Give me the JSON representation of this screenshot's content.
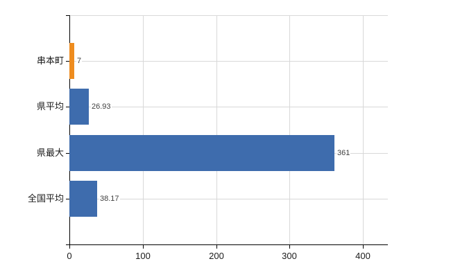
{
  "chart_data": {
    "type": "bar",
    "orientation": "horizontal",
    "title": "",
    "xlabel": "",
    "ylabel": "",
    "categories": [
      "串本町",
      "県平均",
      "県最大",
      "全国平均"
    ],
    "values": [
      7,
      26.93,
      361,
      38.17
    ],
    "value_labels": [
      "7",
      "26.93",
      "361",
      "38.17"
    ],
    "bar_colors": [
      "#ee8c1f",
      "#3e6cad",
      "#3e6cad",
      "#3e6cad"
    ],
    "x_ticks": [
      0,
      100,
      200,
      300,
      400
    ],
    "x_tick_labels": [
      "0",
      "100",
      "200",
      "300",
      "400"
    ],
    "xlim": [
      0,
      434
    ],
    "grid": "on",
    "legend": "none"
  },
  "colors": {
    "bar_default": "#3e6cad",
    "bar_highlight": "#ee8c1f",
    "grid": "#d8d8d8",
    "axis": "#000000",
    "value_label": "#3f3f3f",
    "background": "#ffffff"
  }
}
